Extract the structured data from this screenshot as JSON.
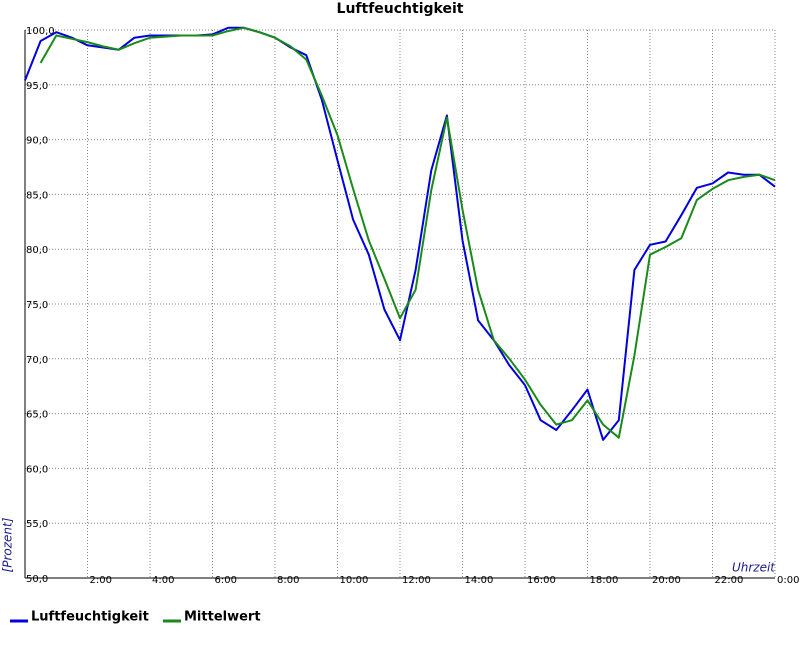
{
  "chart_data": {
    "type": "line",
    "title": "Luftfeuchtigkeit",
    "y_label": "[Prozent]",
    "x_label": "Uhrzeit",
    "grid": true,
    "xlim": [
      0,
      24
    ],
    "xticks": [
      {
        "value": 2,
        "label": "2:00"
      },
      {
        "value": 4,
        "label": "4:00"
      },
      {
        "value": 6,
        "label": "6:00"
      },
      {
        "value": 8,
        "label": "8:00"
      },
      {
        "value": 10,
        "label": "10:00"
      },
      {
        "value": 12,
        "label": "12:00"
      },
      {
        "value": 14,
        "label": "14:00"
      },
      {
        "value": 16,
        "label": "16:00"
      },
      {
        "value": 18,
        "label": "18:00"
      },
      {
        "value": 20,
        "label": "20:00"
      },
      {
        "value": 22,
        "label": "22:00"
      },
      {
        "value": 24,
        "label": "0:00"
      }
    ],
    "ylim": [
      50,
      100
    ],
    "yticks": [
      {
        "value": 50,
        "label": "50,0"
      },
      {
        "value": 55,
        "label": "55,0"
      },
      {
        "value": 60,
        "label": "60,0"
      },
      {
        "value": 65,
        "label": "65,0"
      },
      {
        "value": 70,
        "label": "70,0"
      },
      {
        "value": 75,
        "label": "75,0"
      },
      {
        "value": 80,
        "label": "80,0"
      },
      {
        "value": 85,
        "label": "85,0"
      },
      {
        "value": 90,
        "label": "90,0"
      },
      {
        "value": 95,
        "label": "95,0"
      },
      {
        "value": 100,
        "label": "100,0"
      }
    ],
    "x": [
      0,
      0.5,
      1,
      1.5,
      2,
      2.5,
      3,
      3.5,
      4,
      4.5,
      5,
      5.5,
      6,
      6.5,
      7,
      7.5,
      8,
      8.5,
      9,
      9.5,
      10,
      10.5,
      11,
      11.5,
      12,
      12.5,
      13,
      13.5,
      14,
      14.5,
      15,
      15.5,
      16,
      16.5,
      17,
      17.5,
      18,
      18.5,
      19,
      19.5,
      20,
      20.5,
      21,
      21.5,
      22,
      22.5,
      23,
      23.5,
      24
    ],
    "series": [
      {
        "name": "Luftfeuchtigkeit",
        "color": "#0000dd",
        "values": [
          95.4,
          99.0,
          99.8,
          99.3,
          98.6,
          98.4,
          98.2,
          99.3,
          99.5,
          99.5,
          99.5,
          99.5,
          99.6,
          100.2,
          100.2,
          99.8,
          99.3,
          98.4,
          97.7,
          93.6,
          88.1,
          82.7,
          79.5,
          74.5,
          71.7,
          78.1,
          87.2,
          92.2,
          80.8,
          73.5,
          71.7,
          69.4,
          67.6,
          64.4,
          63.5,
          65.3,
          67.2,
          62.6,
          64.4,
          78.1,
          80.4,
          80.7,
          83.1,
          85.6,
          86.0,
          87.0,
          86.8,
          86.8,
          85.7
        ]
      },
      {
        "name": "Mittelwert",
        "color": "#1a8a1a",
        "values": [
          null,
          97.0,
          99.5,
          99.2,
          98.9,
          98.5,
          98.2,
          98.8,
          99.3,
          99.4,
          99.5,
          99.5,
          99.5,
          99.9,
          100.2,
          99.8,
          99.3,
          98.5,
          97.3,
          94.0,
          90.4,
          85.5,
          80.8,
          77.3,
          73.7,
          76.3,
          85.4,
          92.0,
          83.6,
          76.3,
          71.7,
          70.0,
          68.1,
          65.8,
          64.0,
          64.4,
          66.2,
          64.0,
          62.8,
          70.3,
          79.5,
          80.2,
          81.0,
          84.5,
          85.5,
          86.3,
          86.6,
          86.8,
          86.3
        ]
      }
    ]
  }
}
